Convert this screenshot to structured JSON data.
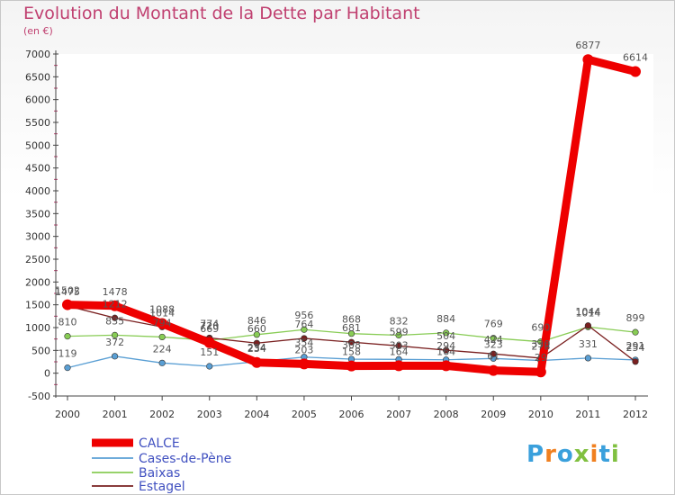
{
  "chart_data": {
    "type": "line",
    "title": "Evolution du Montant de la Dette par Habitant",
    "subtitle": "(en €)",
    "x": [
      "2000",
      "2001",
      "2002",
      "2003",
      "2004",
      "2005",
      "2006",
      "2007",
      "2008",
      "2009",
      "2010",
      "2011",
      "2012"
    ],
    "ylim": [
      -500,
      7000
    ],
    "yticks": [
      "-500",
      "0",
      "500",
      "1000",
      "1500",
      "2000",
      "2500",
      "3000",
      "3500",
      "4000",
      "4500",
      "5000",
      "5500",
      "6000",
      "6500",
      "7000"
    ],
    "series": [
      {
        "name": "CALCE",
        "color": "#ee0000",
        "values": [
          1502,
          1478,
          1088,
          669,
          234,
          203,
          158,
          164,
          164,
          61,
          29,
          6877,
          6614
        ]
      },
      {
        "name": "Cases-de-Pène",
        "color": "#5a9fd4",
        "values": [
          119,
          372,
          224,
          151,
          254,
          354,
          308,
          303,
          294,
          323,
          278,
          331,
          291
        ]
      },
      {
        "name": "Baixas",
        "color": "#88cc55",
        "values": [
          810,
          835,
          794,
          720,
          846,
          956,
          868,
          832,
          884,
          769,
          690,
          1014,
          899
        ]
      },
      {
        "name": "Estagel",
        "color": "#7a2020",
        "values": [
          1475,
          1212,
          1014,
          774,
          660,
          764,
          681,
          599,
          504,
          424,
          330,
          1044,
          254
        ]
      }
    ]
  },
  "logo": {
    "letters": [
      "P",
      "r",
      "o",
      "x",
      "i",
      "t",
      "i"
    ],
    "colors": [
      "#3aa0dc",
      "#f08020",
      "#3aa0dc",
      "#80c040",
      "#f08020",
      "#3aa0dc",
      "#80c040"
    ]
  }
}
